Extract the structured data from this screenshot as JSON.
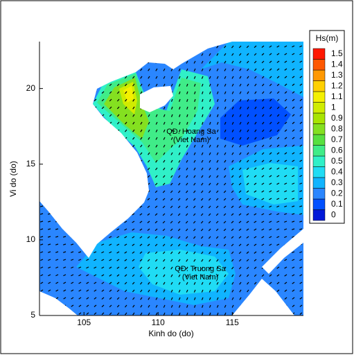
{
  "chart_data": {
    "type": "contour",
    "xlabel": "Kinh do (do)",
    "ylabel": "Vi do (do)",
    "xlim": [
      102,
      119.8
    ],
    "ylim": [
      5,
      23.1
    ],
    "xticks": [
      105,
      110,
      115
    ],
    "yticks": [
      5,
      10,
      15,
      20
    ],
    "annotations": [
      "QĐ. Hoang Sa",
      "(Viet Nam)",
      "QĐ. Truong Sa",
      "(Viet Nam)"
    ],
    "colorbar": {
      "title": "Hs(m)",
      "levels": [
        0,
        0.1,
        0.2,
        0.3,
        0.4,
        0.5,
        0.6,
        0.7,
        0.8,
        0.9,
        1,
        1.1,
        1.2,
        1.3,
        1.4,
        1.5
      ],
      "colors": [
        "#0018d8",
        "#0050ff",
        "#2a86ff",
        "#10b4ff",
        "#20dcf4",
        "#30f0c8",
        "#40ec88",
        "#58e040",
        "#84e020",
        "#a8e400",
        "#d0ec00",
        "#f4f000",
        "#ffd000",
        "#ff9800",
        "#ff5800",
        "#ff1800"
      ]
    }
  }
}
